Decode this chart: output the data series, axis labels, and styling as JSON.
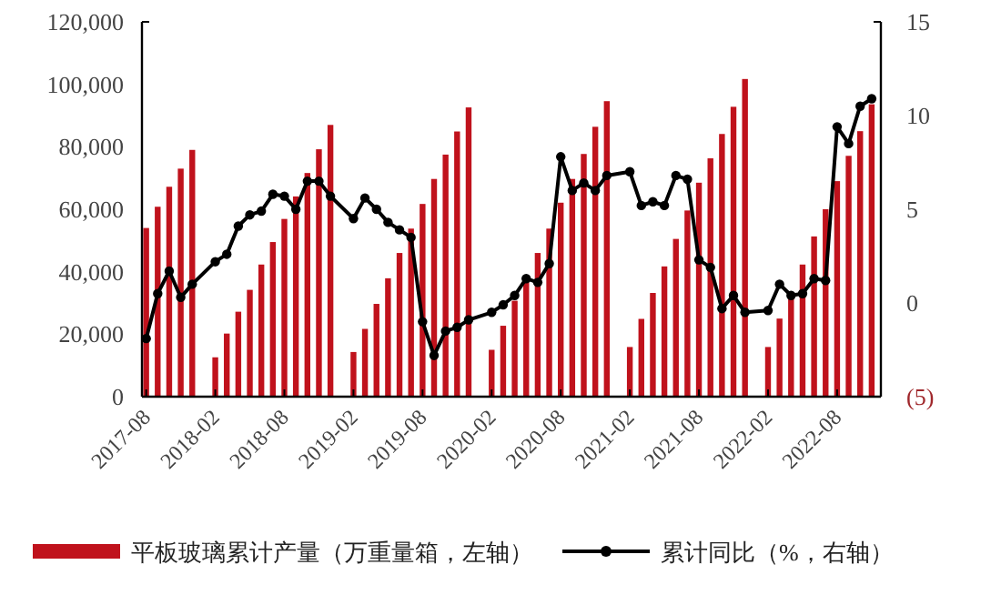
{
  "chart_data": {
    "type": "bar",
    "x": [
      "2017-08",
      "2017-09",
      "2017-10",
      "2017-11",
      "2017-12",
      "2018-02",
      "2018-03",
      "2018-04",
      "2018-05",
      "2018-06",
      "2018-07",
      "2018-08",
      "2018-09",
      "2018-10",
      "2018-11",
      "2018-12",
      "2019-02",
      "2019-03",
      "2019-04",
      "2019-05",
      "2019-06",
      "2019-07",
      "2019-08",
      "2019-09",
      "2019-10",
      "2019-11",
      "2019-12",
      "2020-02",
      "2020-03",
      "2020-04",
      "2020-05",
      "2020-06",
      "2020-07",
      "2020-08",
      "2020-09",
      "2020-10",
      "2020-11",
      "2020-12",
      "2021-02",
      "2021-03",
      "2021-04",
      "2021-05",
      "2021-06",
      "2021-07",
      "2021-08",
      "2021-09",
      "2021-10",
      "2021-11",
      "2021-12",
      "2022-02",
      "2022-03",
      "2022-04",
      "2022-05",
      "2022-06",
      "2022-07",
      "2022-08",
      "2022-09",
      "2022-10",
      "2022-11"
    ],
    "series": [
      {
        "name": "平板玻璃累计产量（万重量箱，左轴）",
        "color": "#c0121c",
        "values": [
          54000,
          60800,
          67200,
          73000,
          79000,
          12600,
          20200,
          27200,
          34200,
          42300,
          49500,
          56900,
          64100,
          71600,
          79200,
          87000,
          14300,
          21700,
          29700,
          37900,
          46000,
          53800,
          61700,
          69700,
          77500,
          84900,
          92600,
          15000,
          22700,
          30700,
          37900,
          46000,
          53800,
          62100,
          69700,
          77700,
          86400,
          94600,
          15900,
          24900,
          33200,
          41700,
          50500,
          59600,
          68500,
          76300,
          84100,
          92800,
          101700,
          15900,
          25000,
          33200,
          42300,
          51300,
          60000,
          69000,
          77100,
          85000,
          93600
        ]
      },
      {
        "name": "累计同比（%，右轴）",
        "type": "line",
        "axis": "y2",
        "color": "#000000",
        "marker": "circle",
        "values": [
          -1.9,
          0.5,
          1.7,
          0.3,
          1.0,
          2.2,
          2.6,
          4.1,
          4.7,
          4.9,
          5.8,
          5.7,
          5.0,
          6.5,
          6.5,
          5.7,
          4.5,
          5.6,
          5.0,
          4.3,
          3.9,
          3.5,
          -1.0,
          -2.8,
          -1.5,
          -1.3,
          -0.9,
          -0.5,
          -0.1,
          0.4,
          1.3,
          1.1,
          2.1,
          7.8,
          6.0,
          6.4,
          6.0,
          6.8,
          7.0,
          5.2,
          5.4,
          5.2,
          6.8,
          6.6,
          2.3,
          1.9,
          -0.3,
          0.4,
          -0.5,
          -0.4,
          1.0,
          0.4,
          0.5,
          1.3,
          1.2,
          9.4,
          8.5,
          10.5,
          10.9
        ]
      }
    ],
    "xlim": [
      "2017-07-20",
      "2022-11-25"
    ],
    "xticks": [
      "2017-08",
      "2018-02",
      "2018-08",
      "2019-02",
      "2019-08",
      "2020-02",
      "2020-08",
      "2021-02",
      "2021-08",
      "2022-02",
      "2022-08"
    ],
    "ylim": [
      0,
      120000
    ],
    "yticks": [
      {
        "value": 0,
        "label": "0"
      },
      {
        "value": 20000,
        "label": "20,000"
      },
      {
        "value": 40000,
        "label": "40,000"
      },
      {
        "value": 60000,
        "label": "60,000"
      },
      {
        "value": 80000,
        "label": "80,000"
      },
      {
        "value": 100000,
        "label": "100,000"
      },
      {
        "value": 120000,
        "label": "120,000"
      }
    ],
    "y2lim": [
      -5,
      15
    ],
    "y2ticks": [
      {
        "value": -5,
        "label": "(5)"
      },
      0,
      5,
      10,
      15
    ],
    "legend": "bottom"
  }
}
